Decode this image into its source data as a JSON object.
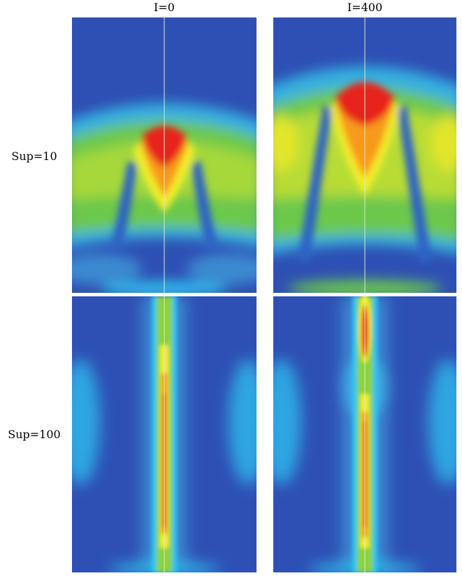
{
  "columns": [
    {
      "label": "I=0"
    },
    {
      "label": "I=400"
    }
  ],
  "rows": [
    {
      "label": "Sup=10"
    },
    {
      "label": "Sup=100"
    }
  ],
  "colormap": {
    "background_blue": "#2e50b4",
    "cyan": "#2fc4ee",
    "green": "#8cd23c",
    "yellow": "#f4f02a",
    "orange": "#f69a1e",
    "red": "#e8201a"
  }
}
